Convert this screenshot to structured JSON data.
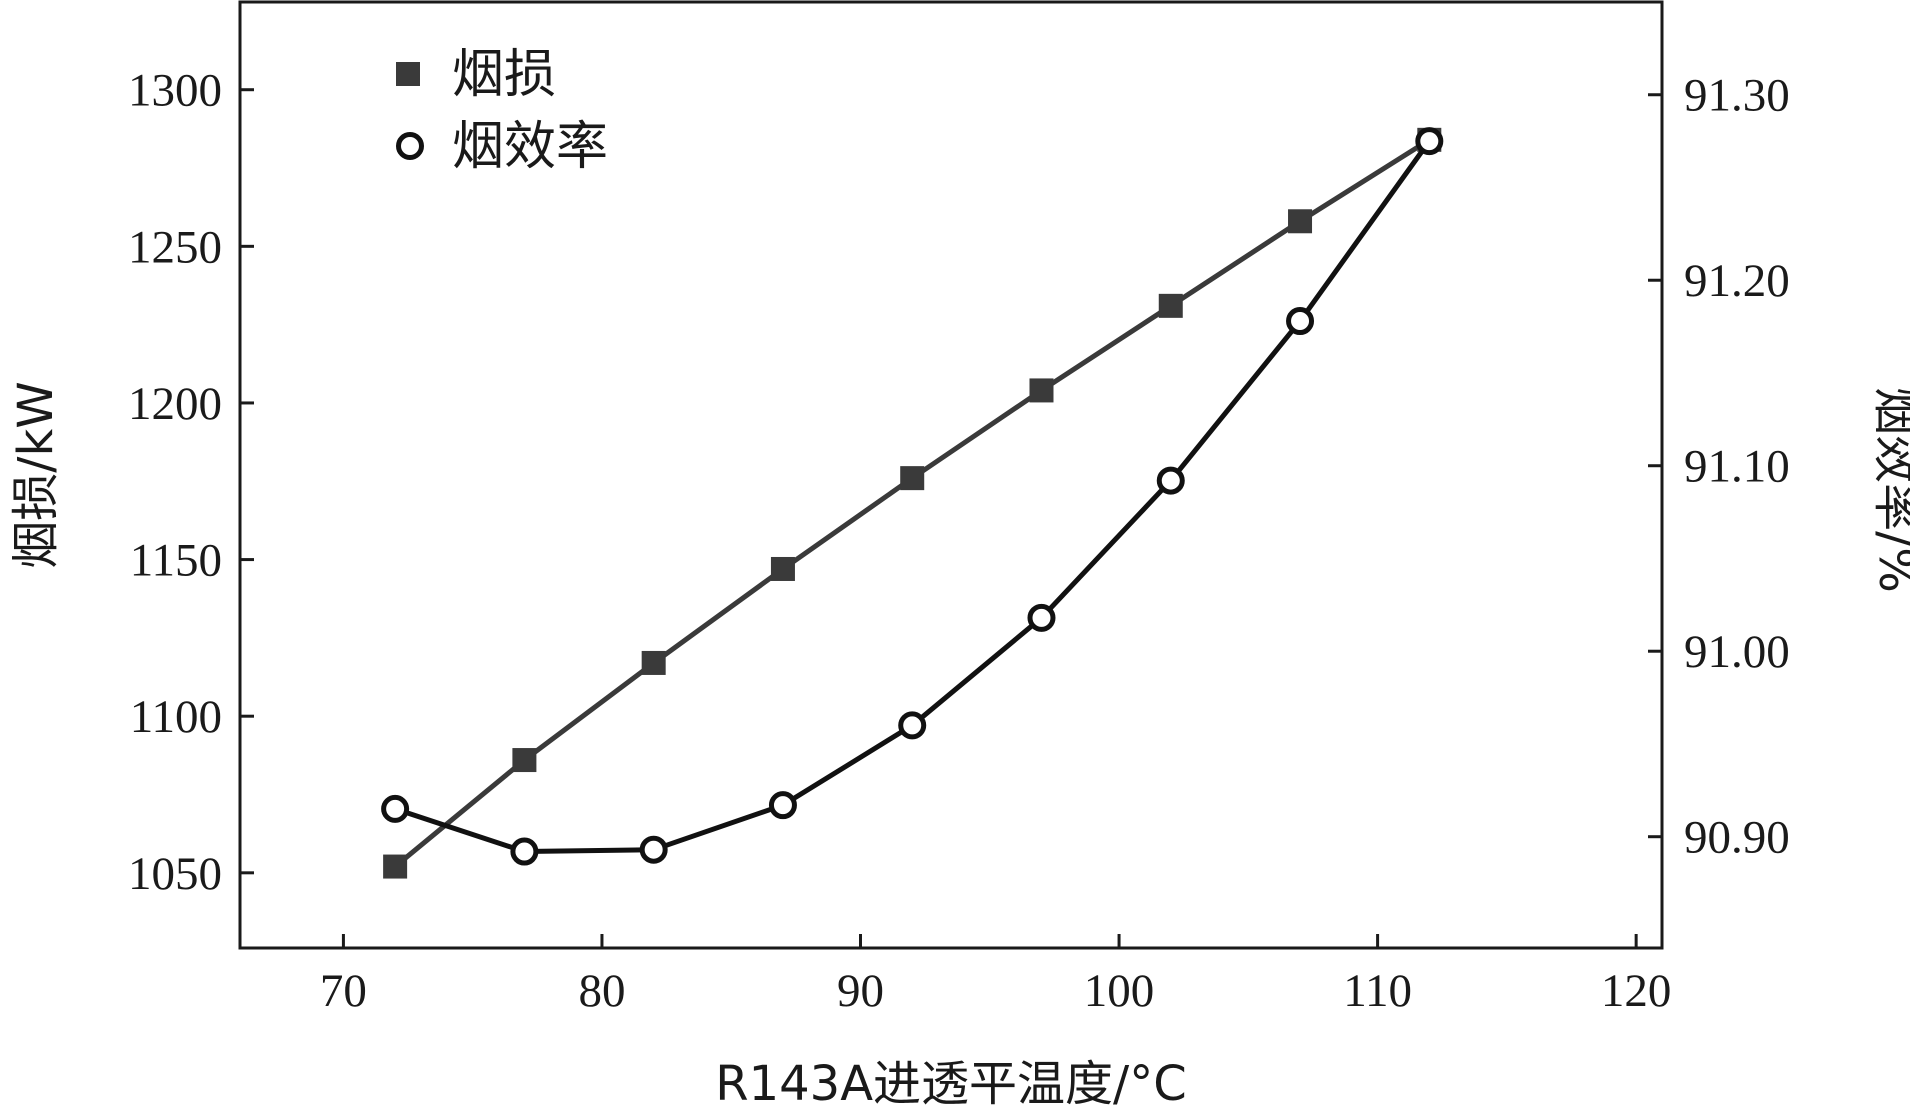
{
  "chart_data": {
    "type": "line",
    "xlabel": "R143A进透平温度/°C",
    "xlim": [
      66,
      121
    ],
    "x_ticks": [
      70,
      80,
      90,
      100,
      110,
      120
    ],
    "ylabel_left": "烟损/kW",
    "ylim_left": [
      1026,
      1328
    ],
    "y_ticks_left": [
      1050,
      1100,
      1150,
      1200,
      1250,
      1300
    ],
    "ylabel_right": "烟效率/%",
    "ylim_right": [
      90.84,
      91.35
    ],
    "y_ticks_right": [
      "90.90",
      "91.00",
      "91.10",
      "91.20",
      "91.30"
    ],
    "grid": false,
    "legend_position": "top-left",
    "x": [
      72,
      77,
      82,
      87,
      92,
      97,
      102,
      107,
      112
    ],
    "series": [
      {
        "name": "烟损",
        "axis": "left",
        "marker": "filled-square",
        "color": "#3a3a3a",
        "values": [
          1052,
          1086,
          1117,
          1147,
          1176,
          1204,
          1231,
          1258,
          1284
        ]
      },
      {
        "name": "烟效率",
        "axis": "right",
        "marker": "open-circle",
        "color": "#111111",
        "values": [
          90.915,
          90.892,
          90.893,
          90.917,
          90.96,
          91.018,
          91.092,
          91.178,
          91.275
        ]
      }
    ]
  }
}
